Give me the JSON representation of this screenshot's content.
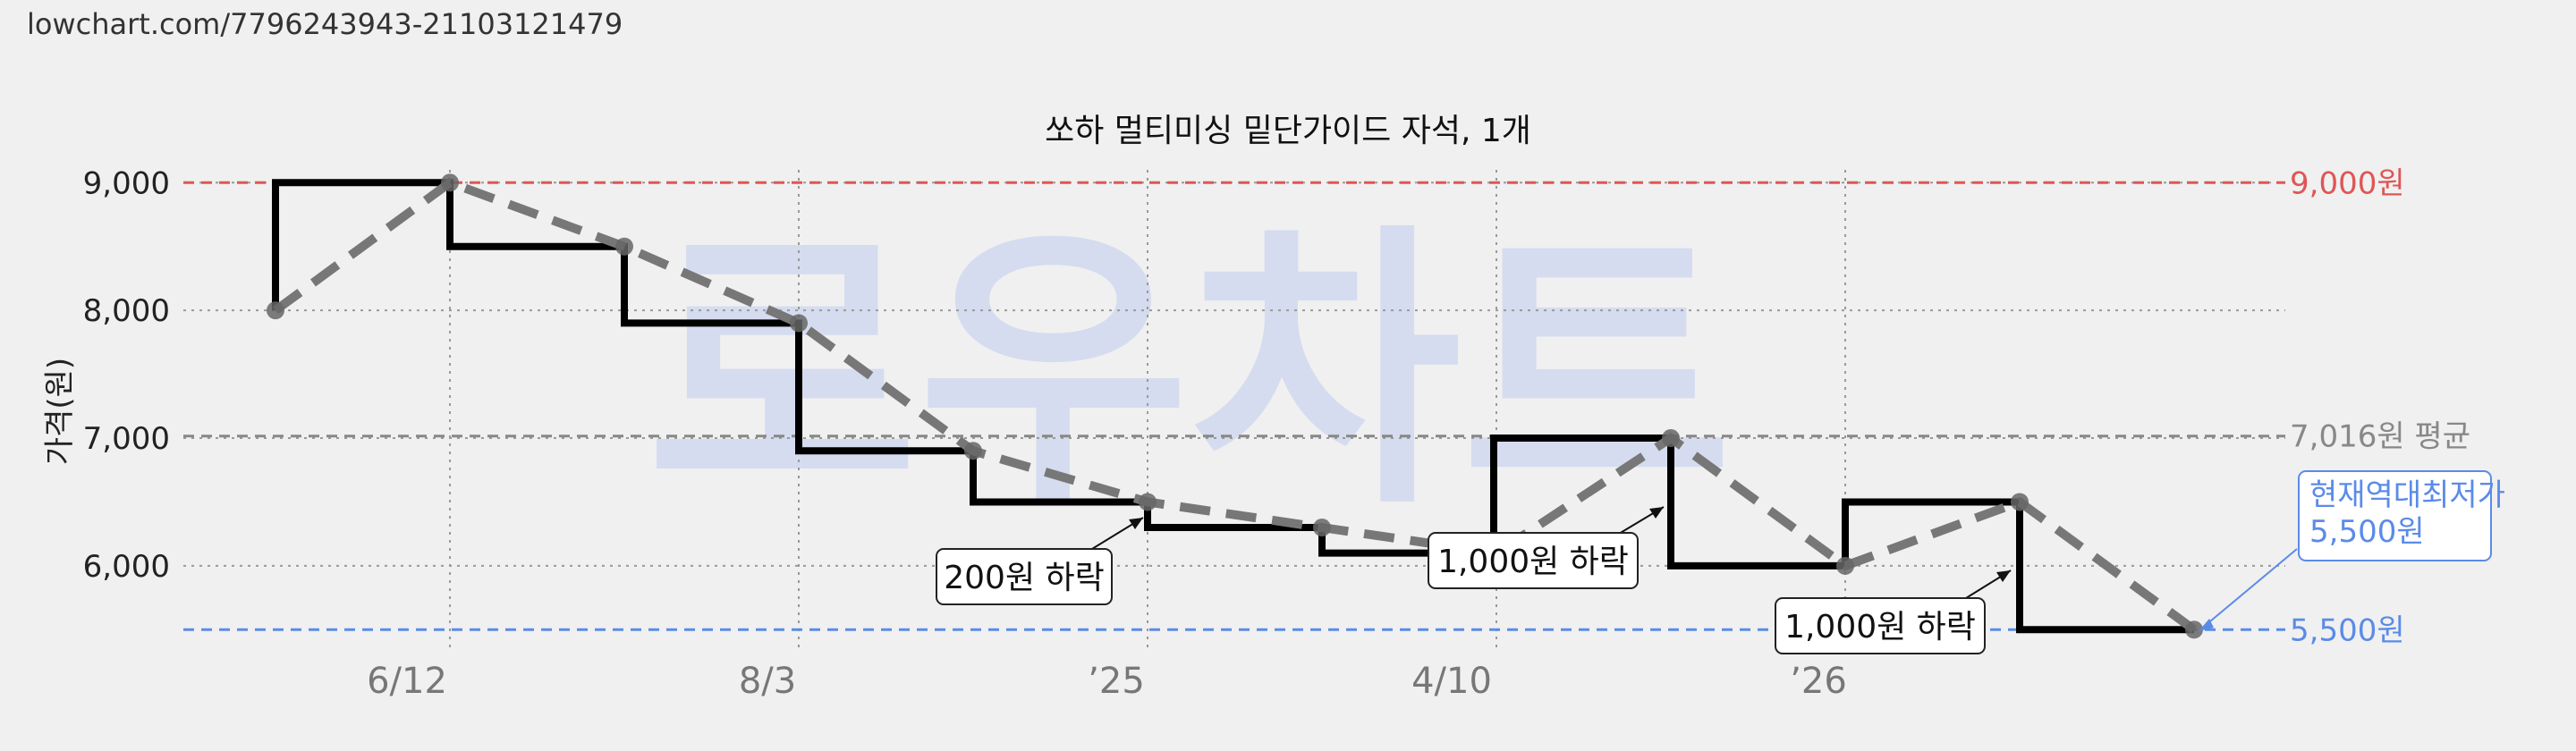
{
  "url_text": "lowchart.com/7796243943-21103121479",
  "watermark": "로우차트",
  "chart_data": {
    "type": "line",
    "title": "쏘하 멀티미싱 밑단가이드 자석, 1개",
    "ylabel": "가격(원)",
    "xlabel": "",
    "ylim": [
      5300,
      9250
    ],
    "y_ticks": [
      {
        "value": 6000,
        "label": "6,000"
      },
      {
        "value": 7000,
        "label": "7,000"
      },
      {
        "value": 8000,
        "label": "8,000"
      },
      {
        "value": 9000,
        "label": "9,000"
      }
    ],
    "x_ticks": [
      "6/12",
      "8/3",
      "’25",
      "4/10",
      "’26"
    ],
    "grid": true,
    "series": [
      {
        "style": "step",
        "color": "#000000",
        "points": [
          [
            0,
            8000
          ],
          [
            1,
            9000
          ],
          [
            2,
            8500
          ],
          [
            3,
            7900
          ],
          [
            4,
            6900
          ],
          [
            5,
            6500
          ],
          [
            6,
            6300
          ],
          [
            7,
            6100
          ],
          [
            8,
            7000
          ],
          [
            9,
            6000
          ],
          [
            10,
            6500
          ],
          [
            11,
            5500
          ]
        ]
      },
      {
        "style": "dashed",
        "color": "#777777",
        "points": [
          [
            0,
            8000
          ],
          [
            1,
            9000
          ],
          [
            2,
            8500
          ],
          [
            3,
            7900
          ],
          [
            4,
            6900
          ],
          [
            5,
            6500
          ],
          [
            6,
            6300
          ],
          [
            7,
            6100
          ],
          [
            8,
            7000
          ],
          [
            9,
            6000
          ],
          [
            10,
            6500
          ],
          [
            11,
            5500
          ]
        ]
      }
    ],
    "reference_lines": [
      {
        "value": 9000,
        "label": "9,000원",
        "color": "#e05555"
      },
      {
        "value": 7016,
        "label": "7,016원 평균",
        "color": "#888888"
      },
      {
        "value": 5500,
        "label": "5,500원",
        "color": "#5b8be8"
      }
    ],
    "annotations": [
      {
        "text": "200원 하락"
      },
      {
        "text": "1,000원 하락"
      },
      {
        "text": "1,000원 하락"
      }
    ],
    "callout": {
      "line1": "현재역대최저가",
      "line2": "5,500원",
      "color": "#5b8be8"
    }
  }
}
